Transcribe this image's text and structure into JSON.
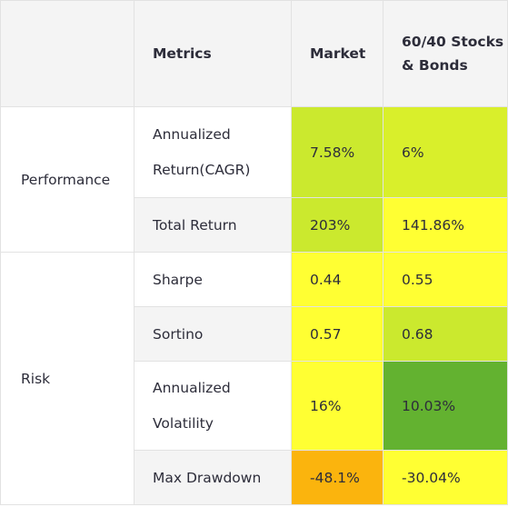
{
  "table": {
    "headers": [
      "",
      "Metrics",
      "Market",
      "60/40 Stocks & Bonds"
    ],
    "groups": [
      {
        "label": "Performance",
        "rows": [
          {
            "metric": "Annualized Return(CAGR)",
            "market": "7.58%",
            "stocks_bonds": "6%"
          },
          {
            "metric": "Total Return",
            "market": "203%",
            "stocks_bonds": "141.86%"
          }
        ]
      },
      {
        "label": "Risk",
        "rows": [
          {
            "metric": "Sharpe",
            "market": "0.44",
            "stocks_bonds": "0.55"
          },
          {
            "metric": "Sortino",
            "market": "0.57",
            "stocks_bonds": "0.68"
          },
          {
            "metric": "Annualized Volatility",
            "market": "16%",
            "stocks_bonds": "10.03%"
          },
          {
            "metric": "Max Drawdown",
            "market": "-48.1%",
            "stocks_bonds": "-30.04%"
          }
        ]
      }
    ],
    "cell_colors": {
      "cagr_market": "#cbe92e",
      "cagr_stocks_bonds": "#d9ef2b",
      "total_return_market": "#cbe92e",
      "total_return_stocks_bonds": "#ffff33",
      "sharpe_market": "#ffff33",
      "sharpe_stocks_bonds": "#ffff33",
      "sortino_market": "#ffff33",
      "sortino_stocks_bonds": "#cbe92e",
      "volatility_market": "#ffff33",
      "volatility_stocks_bonds": "#63b230",
      "drawdown_market": "#fbb40d",
      "drawdown_stocks_bonds": "#ffff33"
    }
  }
}
